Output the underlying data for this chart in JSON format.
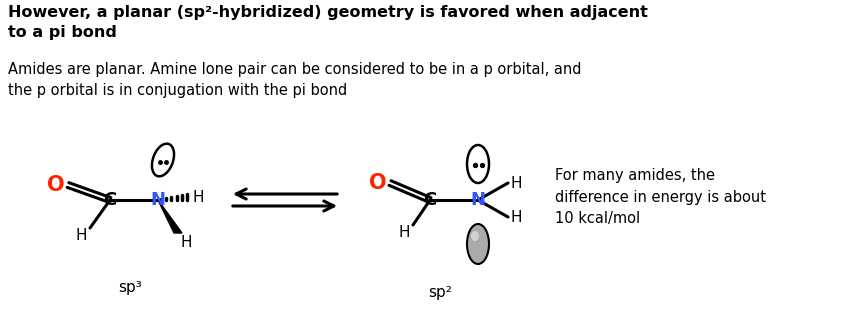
{
  "bg_color": "#ffffff",
  "title_bold": "However, a planar (sp²-hybridized) geometry is favored when adjacent\nto a pi bond",
  "subtitle": "Amides are planar. Amine lone pair can be considered to be in a p orbital, and\nthe p orbital is in conjugation with the pi bond",
  "note": "For many amides, the\ndifference in energy is about\n10 kcal/mol",
  "sp3_label": "sp³",
  "sp2_label": "sp²",
  "color_O": "#ff2200",
  "color_N": "#3355ff",
  "color_C": "#000000",
  "color_H": "#000000",
  "figsize": [
    8.46,
    3.18
  ],
  "dpi": 100
}
